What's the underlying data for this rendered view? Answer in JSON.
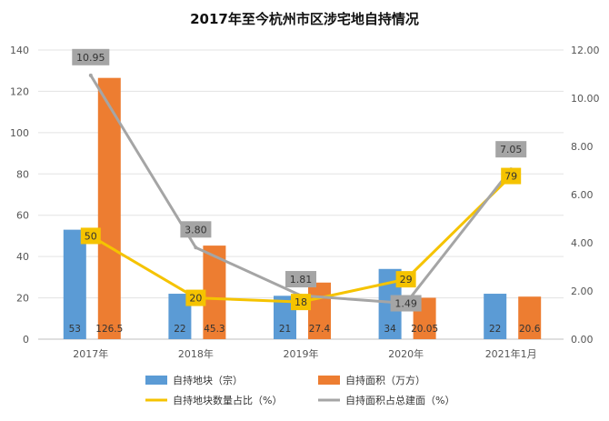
{
  "chart_data": {
    "type": "bar",
    "title": "2017年至今杭州市区涉宅地自持情况",
    "categories": [
      "2017年",
      "2018年",
      "2019年",
      "2020年",
      "2021年1月"
    ],
    "ylim_left": [
      0,
      140
    ],
    "yticks_left": [
      "0",
      "20",
      "40",
      "60",
      "80",
      "100",
      "120",
      "140"
    ],
    "ylim_right": [
      0,
      12
    ],
    "yticks_right": [
      "0.00",
      "2.00",
      "4.00",
      "6.00",
      "8.00",
      "10.00",
      "12.00"
    ],
    "grid": true,
    "legend_position": "bottom",
    "series": [
      {
        "name": "自持地块（宗）",
        "type": "bar",
        "axis": "left",
        "color": "#5B9BD5",
        "values": [
          53,
          22,
          21,
          34,
          22
        ],
        "labels": [
          "53",
          "22",
          "21",
          "34",
          "22"
        ]
      },
      {
        "name": "自持面积（万方）",
        "type": "bar",
        "axis": "left",
        "color": "#ED7D31",
        "values": [
          126.5,
          45.3,
          27.4,
          20.05,
          20.6
        ],
        "labels": [
          "126.5",
          "45.3",
          "27.4",
          "20.05",
          "20.6"
        ]
      },
      {
        "name": "自持地块数量占比（%）",
        "type": "line",
        "axis": "left",
        "color": "#F5C300",
        "values": [
          50,
          20,
          18,
          29,
          79
        ],
        "labels": [
          "50",
          "20",
          "18",
          "29",
          "79"
        ]
      },
      {
        "name": "自持面积占总建面（%）",
        "type": "line",
        "axis": "right",
        "color": "#A5A5A5",
        "values": [
          10.95,
          3.8,
          1.81,
          1.49,
          7.05
        ],
        "labels": [
          "10.95",
          "3.80",
          "1.81",
          "1.49",
          "7.05"
        ]
      }
    ]
  }
}
